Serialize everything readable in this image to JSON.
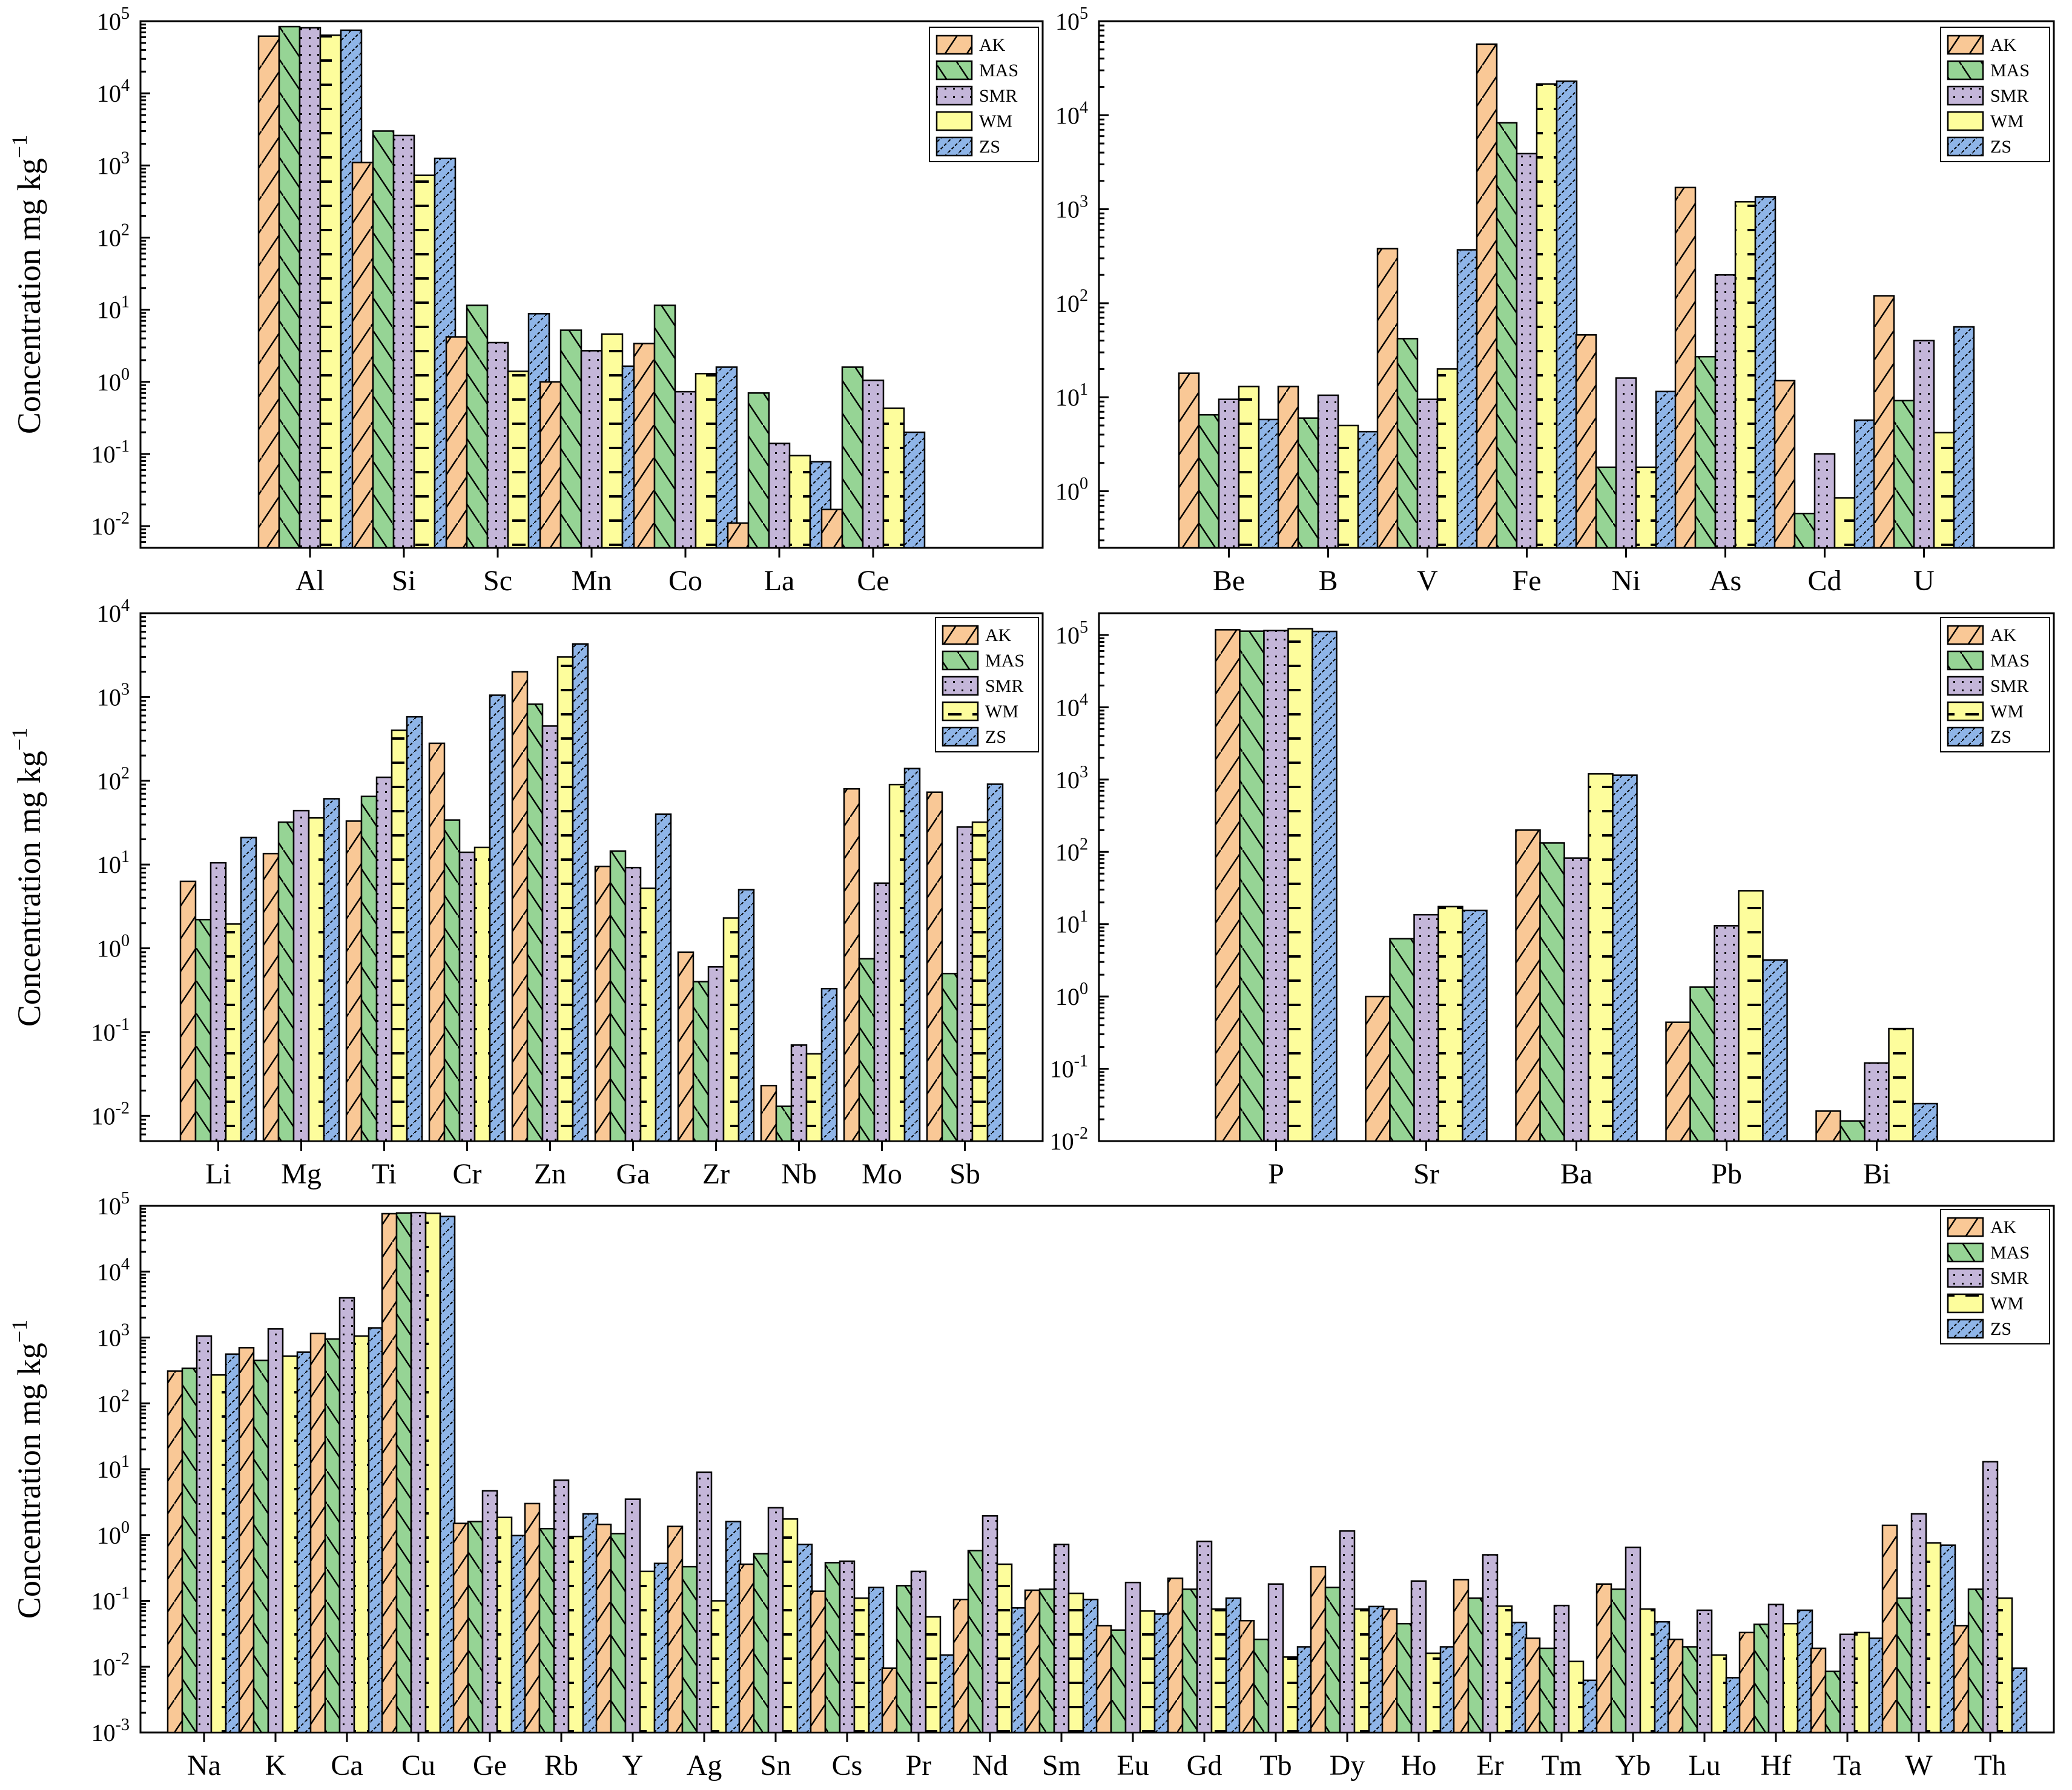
{
  "legend": [
    "AK",
    "MAS",
    "SMR",
    "WM",
    "ZS"
  ],
  "colors": {
    "AK": "#f9c896",
    "MAS": "#96d495",
    "SMR": "#c4b6d9",
    "WM": "#fdfd9c",
    "ZS": "#8fb5e8"
  },
  "ylabel": {
    "main": "Concentration mg kg",
    "sup": "−1"
  },
  "chart_data": [
    {
      "type": "bar",
      "scale": "log",
      "title": "",
      "ylabel": "Concentration mg kg−1",
      "ylim": [
        0.005,
        100000
      ],
      "ticks": [
        [
          "10",
          "-2"
        ],
        [
          "10",
          "-1"
        ],
        [
          "10",
          "0"
        ],
        [
          "10",
          "1"
        ],
        [
          "10",
          "2"
        ],
        [
          "10",
          "3"
        ],
        [
          "10",
          "4"
        ],
        [
          "10",
          "5"
        ]
      ],
      "tick_values": [
        0.01,
        0.1,
        1,
        10,
        100,
        1000,
        10000,
        100000
      ],
      "categories": [
        "Al",
        "Si",
        "Sc",
        "Mn",
        "Co",
        "La",
        "Ce"
      ],
      "series": [
        {
          "name": "AK",
          "values": [
            62000,
            1100,
            4.2,
            1.0,
            3.4,
            0.011,
            0.017
          ]
        },
        {
          "name": "MAS",
          "values": [
            84000,
            3000,
            11.5,
            5.2,
            11.5,
            0.7,
            1.6
          ]
        },
        {
          "name": "SMR",
          "values": [
            81000,
            2600,
            3.5,
            2.7,
            0.73,
            0.14,
            1.05
          ]
        },
        {
          "name": "WM",
          "values": [
            64000,
            730,
            1.4,
            4.6,
            1.3,
            0.095,
            0.43
          ]
        },
        {
          "name": "ZS",
          "values": [
            75000,
            1250,
            8.8,
            1.65,
            1.6,
            0.078,
            0.2
          ]
        }
      ]
    },
    {
      "type": "bar",
      "scale": "log",
      "title": "",
      "ylabel": "",
      "ylim": [
        0.25,
        100000
      ],
      "ticks": [
        [
          "10",
          "0"
        ],
        [
          "10",
          "1"
        ],
        [
          "10",
          "2"
        ],
        [
          "10",
          "3"
        ],
        [
          "10",
          "4"
        ],
        [
          "10",
          "5"
        ]
      ],
      "tick_values": [
        1,
        10,
        100,
        1000,
        10000,
        100000
      ],
      "categories": [
        "Be",
        "B",
        "V",
        "Fe",
        "Ni",
        "As",
        "Cd",
        "U"
      ],
      "series": [
        {
          "name": "AK",
          "values": [
            18,
            13,
            380,
            57000,
            46,
            1700,
            15,
            120
          ]
        },
        {
          "name": "MAS",
          "values": [
            6.5,
            6,
            42,
            8300,
            1.8,
            27,
            0.58,
            9.2
          ]
        },
        {
          "name": "SMR",
          "values": [
            9.5,
            10.5,
            9.5,
            3900,
            16,
            200,
            2.5,
            40
          ]
        },
        {
          "name": "WM",
          "values": [
            13,
            5,
            20,
            21500,
            1.8,
            1200,
            0.85,
            4.2
          ]
        },
        {
          "name": "ZS",
          "values": [
            5.8,
            4.3,
            370,
            23000,
            11.5,
            1350,
            5.7,
            56
          ]
        }
      ]
    },
    {
      "type": "bar",
      "scale": "log",
      "title": "",
      "ylabel": "Concentration mg kg−1",
      "ylim": [
        0.005,
        10000
      ],
      "ticks": [
        [
          "10",
          "-2"
        ],
        [
          "10",
          "-1"
        ],
        [
          "10",
          "0"
        ],
        [
          "10",
          "1"
        ],
        [
          "10",
          "2"
        ],
        [
          "10",
          "3"
        ],
        [
          "10",
          "4"
        ]
      ],
      "tick_values": [
        0.01,
        0.1,
        1,
        10,
        100,
        1000,
        10000
      ],
      "categories": [
        "Li",
        "Mg",
        "Ti",
        "Cr",
        "Zn",
        "Ga",
        "Zr",
        "Nb",
        "Mo",
        "Sb"
      ],
      "series": [
        {
          "name": "AK",
          "values": [
            6.3,
            13.5,
            33,
            280,
            2000,
            9.5,
            0.9,
            0.023,
            80,
            73
          ]
        },
        {
          "name": "MAS",
          "values": [
            2.2,
            32,
            65,
            34,
            820,
            14.5,
            0.4,
            0.013,
            0.75,
            0.5
          ]
        },
        {
          "name": "SMR",
          "values": [
            10.5,
            44,
            110,
            14,
            450,
            9.2,
            0.6,
            0.07,
            6,
            28
          ]
        },
        {
          "name": "WM",
          "values": [
            1.95,
            36,
            400,
            16,
            3000,
            5.2,
            2.3,
            0.055,
            90,
            32
          ]
        },
        {
          "name": "ZS",
          "values": [
            21,
            61,
            580,
            1050,
            4300,
            40,
            5,
            0.33,
            140,
            91
          ]
        }
      ]
    },
    {
      "type": "bar",
      "scale": "log",
      "title": "",
      "ylabel": "",
      "ylim": [
        0.01,
        200000
      ],
      "ticks": [
        [
          "10",
          "-2"
        ],
        [
          "10",
          "-1"
        ],
        [
          "10",
          "0"
        ],
        [
          "10",
          "1"
        ],
        [
          "10",
          "2"
        ],
        [
          "10",
          "3"
        ],
        [
          "10",
          "4"
        ],
        [
          "10",
          "5"
        ]
      ],
      "tick_values": [
        0.01,
        0.1,
        1,
        10,
        100,
        1000,
        10000,
        100000
      ],
      "categories": [
        "P",
        "Sr",
        "Ba",
        "Pb",
        "Bi"
      ],
      "series": [
        {
          "name": "AK",
          "values": [
            118000,
            1.0,
            200,
            0.44,
            0.026
          ]
        },
        {
          "name": "MAS",
          "values": [
            113000,
            6.3,
            133,
            1.35,
            0.019
          ]
        },
        {
          "name": "SMR",
          "values": [
            115000,
            13.5,
            82,
            9.5,
            0.12
          ]
        },
        {
          "name": "WM",
          "values": [
            122000,
            17.5,
            1200,
            29,
            0.36
          ]
        },
        {
          "name": "ZS",
          "values": [
            112000,
            15.5,
            1150,
            3.2,
            0.033
          ]
        }
      ]
    },
    {
      "type": "bar",
      "scale": "log",
      "title": "",
      "ylabel": "Concentration mg kg−1",
      "ylim": [
        0.001,
        100000
      ],
      "ticks": [
        [
          "10",
          "-3"
        ],
        [
          "10",
          "-2"
        ],
        [
          "10",
          "-1"
        ],
        [
          "10",
          "0"
        ],
        [
          "10",
          "1"
        ],
        [
          "10",
          "2"
        ],
        [
          "10",
          "3"
        ],
        [
          "10",
          "4"
        ],
        [
          "10",
          "5"
        ]
      ],
      "tick_values": [
        0.001,
        0.01,
        0.1,
        1,
        10,
        100,
        1000,
        10000,
        100000
      ],
      "categories": [
        "Na",
        "K",
        "Ca",
        "Cu",
        "Ge",
        "Rb",
        "Y",
        "Ag",
        "Sn",
        "Cs",
        "Pr",
        "Nd",
        "Sm",
        "Eu",
        "Gd",
        "Tb",
        "Dy",
        "Ho",
        "Er",
        "Tm",
        "Yb",
        "Lu",
        "Hf",
        "Ta",
        "W",
        "Th"
      ],
      "series": [
        {
          "name": "AK",
          "values": [
            310,
            700,
            1150,
            76000,
            1.5,
            3.0,
            1.45,
            1.35,
            0.36,
            0.14,
            0.0095,
            0.105,
            0.145,
            0.042,
            0.22,
            0.05,
            0.33,
            0.075,
            0.21,
            0.027,
            0.18,
            0.026,
            0.033,
            0.019,
            1.4,
            0.042
          ]
        },
        {
          "name": "MAS",
          "values": [
            340,
            450,
            950,
            78000,
            1.6,
            1.25,
            1.05,
            0.33,
            0.52,
            0.38,
            0.17,
            0.58,
            0.15,
            0.036,
            0.15,
            0.026,
            0.16,
            0.045,
            0.11,
            0.019,
            0.15,
            0.02,
            0.044,
            0.0085,
            0.11,
            0.15
          ]
        },
        {
          "name": "SMR",
          "values": [
            1050,
            1350,
            4000,
            79000,
            4.7,
            6.8,
            3.5,
            9.0,
            2.6,
            0.4,
            0.28,
            1.95,
            0.72,
            0.19,
            0.8,
            0.18,
            1.15,
            0.2,
            0.5,
            0.085,
            0.65,
            0.072,
            0.088,
            0.031,
            2.1,
            13
          ]
        },
        {
          "name": "WM",
          "values": [
            270,
            520,
            1050,
            77000,
            1.85,
            0.95,
            0.28,
            0.1,
            1.75,
            0.11,
            0.057,
            0.36,
            0.13,
            0.07,
            0.075,
            0.014,
            0.075,
            0.016,
            0.083,
            0.012,
            0.075,
            0.015,
            0.045,
            0.033,
            0.76,
            0.11
          ]
        },
        {
          "name": "ZS",
          "values": [
            560,
            600,
            1400,
            69000,
            0.98,
            2.1,
            0.37,
            1.6,
            0.72,
            0.16,
            0.015,
            0.078,
            0.105,
            0.063,
            0.11,
            0.02,
            0.082,
            0.02,
            0.047,
            0.0062,
            0.048,
            0.0068,
            0.072,
            0.027,
            0.7,
            0.0095
          ]
        }
      ]
    }
  ]
}
